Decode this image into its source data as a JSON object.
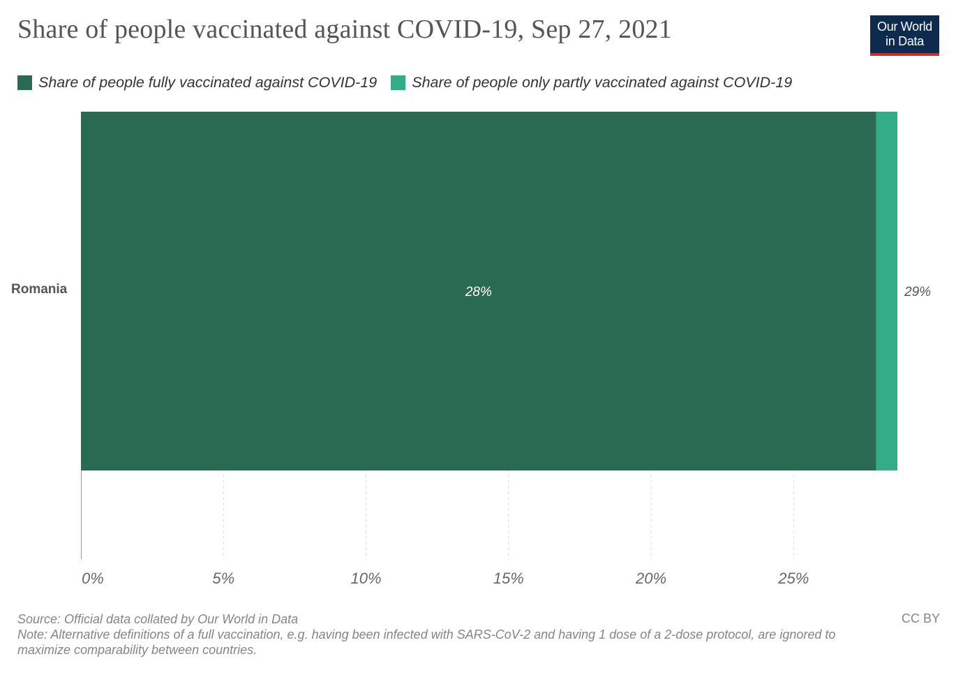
{
  "title": "Share of people vaccinated against COVID-19, Sep 27, 2021",
  "logo": {
    "line1": "Our World",
    "line2": "in Data"
  },
  "legend": [
    {
      "label": "Share of people fully vaccinated against COVID-19",
      "color": "#2a6a53"
    },
    {
      "label": "Share of people only partly vaccinated against COVID-19",
      "color": "#33ad85"
    }
  ],
  "chart_data": {
    "type": "bar",
    "orientation": "horizontal",
    "stacked": true,
    "categories": [
      "Romania"
    ],
    "series": [
      {
        "name": "Share of people fully vaccinated against COVID-19",
        "values": [
          27.9
        ],
        "color": "#2a6a53",
        "label": "28%"
      },
      {
        "name": "Share of people only partly vaccinated against COVID-19",
        "values": [
          0.74
        ],
        "color": "#33ad85"
      }
    ],
    "total_labels": [
      "29%"
    ],
    "xlim": [
      0,
      28.64
    ],
    "xticks": [
      0,
      5,
      10,
      15,
      20,
      25
    ],
    "xtick_labels": [
      "0%",
      "5%",
      "10%",
      "15%",
      "20%",
      "25%"
    ],
    "grid": "vertical dashed",
    "legend_position": "top"
  },
  "footer": {
    "source": "Source: Official data collated by Our World in Data",
    "note": "Note: Alternative definitions of a full vaccination, e.g. having been infected with SARS-CoV-2 and having 1 dose of a 2-dose protocol, are ignored to maximize comparability between countries.",
    "license": "CC BY"
  }
}
